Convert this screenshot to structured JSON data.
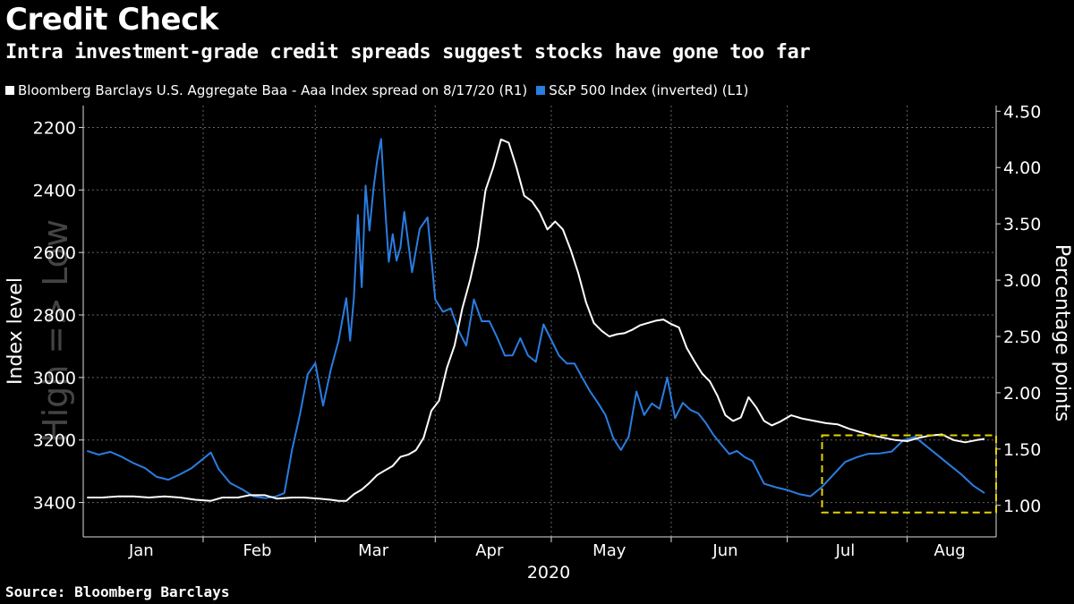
{
  "title": "Credit Check",
  "subtitle": "Intra investment-grade credit spreads suggest stocks have gone too far",
  "source": "Source: Bloomberg Barclays",
  "colors": {
    "background": "#000000",
    "spread": "#ffffff",
    "spx": "#2a7de1",
    "box": "#e6d200",
    "grid": "#666666"
  },
  "chart_data": {
    "type": "line",
    "xlabel": "2020",
    "x_ticks": [
      "Jan",
      "Feb",
      "Mar",
      "Apr",
      "May",
      "Jun",
      "Jul",
      "Aug"
    ],
    "y_left": {
      "label": "Index level",
      "inverted": true,
      "range": [
        2130,
        3510
      ],
      "ticks": [
        "2200",
        "2400",
        "2600",
        "2800",
        "3000",
        "3200",
        "3400"
      ]
    },
    "y_right": {
      "label": "Percentage points",
      "range": [
        0.72,
        4.55
      ],
      "ticks": [
        "4.50",
        "4.00",
        "3.50",
        "3.00",
        "2.50",
        "2.00",
        "1.50",
        "1.00"
      ]
    },
    "watermark": "High => Low",
    "highlight_box": {
      "x_start": "2020-07-10",
      "x_end": "2020-08-24",
      "y_left": [
        3185,
        3432
      ]
    },
    "series": [
      {
        "name": "Bloomberg Barclays U.S. Aggregate Baa - Aaa Index spread on 8/17/20 (R1)",
        "axis": "right",
        "points": [
          [
            "2020-01-02",
            1.07
          ],
          [
            "2020-01-06",
            1.07
          ],
          [
            "2020-01-10",
            1.08
          ],
          [
            "2020-01-14",
            1.08
          ],
          [
            "2020-01-18",
            1.07
          ],
          [
            "2020-01-22",
            1.08
          ],
          [
            "2020-01-26",
            1.07
          ],
          [
            "2020-01-30",
            1.05
          ],
          [
            "2020-02-03",
            1.04
          ],
          [
            "2020-02-06",
            1.07
          ],
          [
            "2020-02-10",
            1.07
          ],
          [
            "2020-02-13",
            1.09
          ],
          [
            "2020-02-17",
            1.09
          ],
          [
            "2020-02-20",
            1.06
          ],
          [
            "2020-02-24",
            1.07
          ],
          [
            "2020-02-27",
            1.07
          ],
          [
            "2020-03-02",
            1.06
          ],
          [
            "2020-03-05",
            1.05
          ],
          [
            "2020-03-07",
            1.04
          ],
          [
            "2020-03-09",
            1.04
          ],
          [
            "2020-03-11",
            1.1
          ],
          [
            "2020-03-13",
            1.14
          ],
          [
            "2020-03-15",
            1.2
          ],
          [
            "2020-03-17",
            1.27
          ],
          [
            "2020-03-19",
            1.31
          ],
          [
            "2020-03-21",
            1.35
          ],
          [
            "2020-03-23",
            1.43
          ],
          [
            "2020-03-25",
            1.45
          ],
          [
            "2020-03-27",
            1.49
          ],
          [
            "2020-03-29",
            1.6
          ],
          [
            "2020-03-31",
            1.84
          ],
          [
            "2020-04-02",
            1.93
          ],
          [
            "2020-04-04",
            2.22
          ],
          [
            "2020-04-06",
            2.42
          ],
          [
            "2020-04-08",
            2.75
          ],
          [
            "2020-04-10",
            3.0
          ],
          [
            "2020-04-12",
            3.3
          ],
          [
            "2020-04-14",
            3.8
          ],
          [
            "2020-04-16",
            4.0
          ],
          [
            "2020-04-18",
            4.25
          ],
          [
            "2020-04-20",
            4.22
          ],
          [
            "2020-04-22",
            4.0
          ],
          [
            "2020-04-24",
            3.75
          ],
          [
            "2020-04-26",
            3.7
          ],
          [
            "2020-04-28",
            3.6
          ],
          [
            "2020-04-30",
            3.45
          ],
          [
            "2020-05-02",
            3.52
          ],
          [
            "2020-05-04",
            3.45
          ],
          [
            "2020-05-06",
            3.27
          ],
          [
            "2020-05-08",
            3.06
          ],
          [
            "2020-05-10",
            2.8
          ],
          [
            "2020-05-12",
            2.62
          ],
          [
            "2020-05-14",
            2.55
          ],
          [
            "2020-05-16",
            2.5
          ],
          [
            "2020-05-18",
            2.52
          ],
          [
            "2020-05-20",
            2.53
          ],
          [
            "2020-05-22",
            2.56
          ],
          [
            "2020-05-24",
            2.6
          ],
          [
            "2020-05-26",
            2.62
          ],
          [
            "2020-05-28",
            2.64
          ],
          [
            "2020-05-30",
            2.65
          ],
          [
            "2020-06-01",
            2.61
          ],
          [
            "2020-06-03",
            2.58
          ],
          [
            "2020-06-05",
            2.4
          ],
          [
            "2020-06-07",
            2.28
          ],
          [
            "2020-06-09",
            2.17
          ],
          [
            "2020-06-11",
            2.1
          ],
          [
            "2020-06-13",
            1.97
          ],
          [
            "2020-06-15",
            1.8
          ],
          [
            "2020-06-17",
            1.75
          ],
          [
            "2020-06-19",
            1.78
          ],
          [
            "2020-06-21",
            1.96
          ],
          [
            "2020-06-23",
            1.87
          ],
          [
            "2020-06-25",
            1.75
          ],
          [
            "2020-06-27",
            1.71
          ],
          [
            "2020-06-29",
            1.74
          ],
          [
            "2020-07-02",
            1.8
          ],
          [
            "2020-07-05",
            1.77
          ],
          [
            "2020-07-08",
            1.75
          ],
          [
            "2020-07-11",
            1.73
          ],
          [
            "2020-07-14",
            1.72
          ],
          [
            "2020-07-17",
            1.68
          ],
          [
            "2020-07-20",
            1.65
          ],
          [
            "2020-07-23",
            1.62
          ],
          [
            "2020-07-26",
            1.6
          ],
          [
            "2020-07-29",
            1.58
          ],
          [
            "2020-08-01",
            1.57
          ],
          [
            "2020-08-04",
            1.6
          ],
          [
            "2020-08-07",
            1.62
          ],
          [
            "2020-08-10",
            1.63
          ],
          [
            "2020-08-13",
            1.58
          ],
          [
            "2020-08-16",
            1.56
          ],
          [
            "2020-08-19",
            1.58
          ],
          [
            "2020-08-21",
            1.59
          ]
        ]
      },
      {
        "name": "S&P 500 Index (inverted) (L1)",
        "axis": "left",
        "points": [
          [
            "2020-01-02",
            3235
          ],
          [
            "2020-01-05",
            3247
          ],
          [
            "2020-01-08",
            3238
          ],
          [
            "2020-01-11",
            3254
          ],
          [
            "2020-01-14",
            3274
          ],
          [
            "2020-01-17",
            3290
          ],
          [
            "2020-01-20",
            3318
          ],
          [
            "2020-01-23",
            3327
          ],
          [
            "2020-01-26",
            3310
          ],
          [
            "2020-01-29",
            3290
          ],
          [
            "2020-02-01",
            3260
          ],
          [
            "2020-02-03",
            3240
          ],
          [
            "2020-02-05",
            3293
          ],
          [
            "2020-02-08",
            3338
          ],
          [
            "2020-02-11",
            3357
          ],
          [
            "2020-02-14",
            3380
          ],
          [
            "2020-02-17",
            3386
          ],
          [
            "2020-02-20",
            3380
          ],
          [
            "2020-02-22",
            3370
          ],
          [
            "2020-02-24",
            3230
          ],
          [
            "2020-02-26",
            3120
          ],
          [
            "2020-02-28",
            2990
          ],
          [
            "2020-03-01",
            2954
          ],
          [
            "2020-03-03",
            3090
          ],
          [
            "2020-03-05",
            2975
          ],
          [
            "2020-03-07",
            2882
          ],
          [
            "2020-03-09",
            2746
          ],
          [
            "2020-03-10",
            2882
          ],
          [
            "2020-03-11",
            2741
          ],
          [
            "2020-03-12",
            2480
          ],
          [
            "2020-03-13",
            2711
          ],
          [
            "2020-03-14",
            2386
          ],
          [
            "2020-03-15",
            2530
          ],
          [
            "2020-03-16",
            2398
          ],
          [
            "2020-03-17",
            2304
          ],
          [
            "2020-03-18",
            2237
          ],
          [
            "2020-03-19",
            2447
          ],
          [
            "2020-03-20",
            2630
          ],
          [
            "2020-03-21",
            2541
          ],
          [
            "2020-03-22",
            2626
          ],
          [
            "2020-03-23",
            2584
          ],
          [
            "2020-03-24",
            2470
          ],
          [
            "2020-03-26",
            2663
          ],
          [
            "2020-03-28",
            2524
          ],
          [
            "2020-03-30",
            2488
          ],
          [
            "2020-04-01",
            2750
          ],
          [
            "2020-04-03",
            2790
          ],
          [
            "2020-04-05",
            2779
          ],
          [
            "2020-04-07",
            2848
          ],
          [
            "2020-04-09",
            2898
          ],
          [
            "2020-04-11",
            2750
          ],
          [
            "2020-04-13",
            2820
          ],
          [
            "2020-04-15",
            2820
          ],
          [
            "2020-04-17",
            2872
          ],
          [
            "2020-04-19",
            2930
          ],
          [
            "2020-04-21",
            2929
          ],
          [
            "2020-04-23",
            2874
          ],
          [
            "2020-04-25",
            2930
          ],
          [
            "2020-04-27",
            2950
          ],
          [
            "2020-04-29",
            2830
          ],
          [
            "2020-05-01",
            2880
          ],
          [
            "2020-05-03",
            2930
          ],
          [
            "2020-05-05",
            2955
          ],
          [
            "2020-05-07",
            2955
          ],
          [
            "2020-05-09",
            3000
          ],
          [
            "2020-05-11",
            3044
          ],
          [
            "2020-05-13",
            3080
          ],
          [
            "2020-05-15",
            3120
          ],
          [
            "2020-05-17",
            3193
          ],
          [
            "2020-05-19",
            3232
          ],
          [
            "2020-05-21",
            3190
          ],
          [
            "2020-05-23",
            3045
          ],
          [
            "2020-05-25",
            3120
          ],
          [
            "2020-05-27",
            3083
          ],
          [
            "2020-05-29",
            3100
          ],
          [
            "2020-05-31",
            3000
          ],
          [
            "2020-06-02",
            3130
          ],
          [
            "2020-06-04",
            3081
          ],
          [
            "2020-06-06",
            3104
          ],
          [
            "2020-06-08",
            3115
          ],
          [
            "2020-06-10",
            3146
          ],
          [
            "2020-06-12",
            3185
          ],
          [
            "2020-06-14",
            3215
          ],
          [
            "2020-06-16",
            3245
          ],
          [
            "2020-06-18",
            3235
          ],
          [
            "2020-06-20",
            3255
          ],
          [
            "2020-06-22",
            3267
          ],
          [
            "2020-06-25",
            3340
          ],
          [
            "2020-06-28",
            3351
          ],
          [
            "2020-07-01",
            3360
          ],
          [
            "2020-07-04",
            3373
          ],
          [
            "2020-07-07",
            3380
          ],
          [
            "2020-07-10",
            3350
          ],
          [
            "2020-07-13",
            3310
          ],
          [
            "2020-07-16",
            3270
          ],
          [
            "2020-07-19",
            3255
          ],
          [
            "2020-07-22",
            3244
          ],
          [
            "2020-07-25",
            3243
          ],
          [
            "2020-07-28",
            3237
          ],
          [
            "2020-07-31",
            3201
          ],
          [
            "2020-08-03",
            3190
          ],
          [
            "2020-08-06",
            3220
          ],
          [
            "2020-08-09",
            3250
          ],
          [
            "2020-08-12",
            3280
          ],
          [
            "2020-08-15",
            3310
          ],
          [
            "2020-08-18",
            3345
          ],
          [
            "2020-08-21",
            3370
          ]
        ]
      }
    ]
  }
}
